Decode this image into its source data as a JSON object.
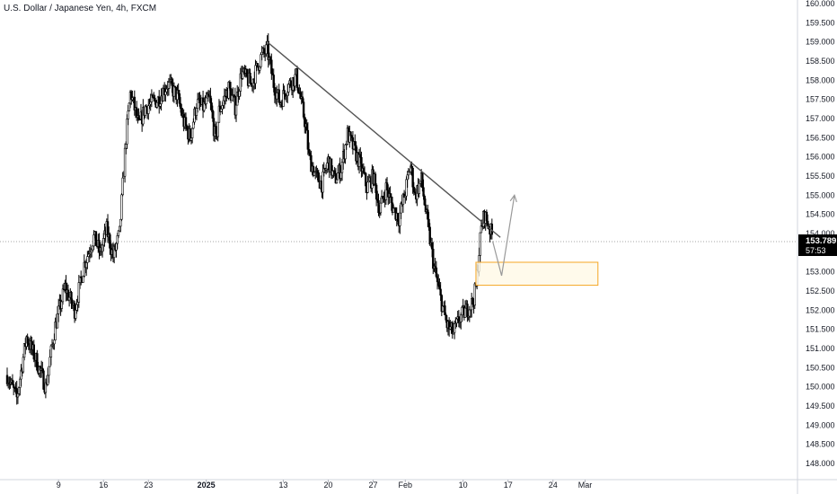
{
  "chart_data": {
    "type": "candlestick",
    "title": "U.S. Dollar / Japanese Yen, 4h, FXCM",
    "ylim": [
      147.75,
      160.1
    ],
    "y_ticks": [
      "148.000",
      "148.500",
      "149.000",
      "149.500",
      "150.000",
      "150.500",
      "151.000",
      "151.500",
      "152.000",
      "152.500",
      "153.000",
      "153.500",
      "154.000",
      "154.500",
      "155.000",
      "155.500",
      "156.000",
      "156.500",
      "157.000",
      "157.500",
      "158.000",
      "158.500",
      "159.000",
      "159.500",
      "160.000"
    ],
    "x_ticks": [
      {
        "label": "9",
        "day": 9
      },
      {
        "label": "16",
        "day": 16
      },
      {
        "label": "23",
        "day": 23
      },
      {
        "label": "2025",
        "day": 32
      },
      {
        "label": "13",
        "day": 44
      },
      {
        "label": "20",
        "day": 51
      },
      {
        "label": "27",
        "day": 58
      },
      {
        "label": "Feb",
        "day": 63
      },
      {
        "label": "10",
        "day": 72
      },
      {
        "label": "17",
        "day": 79
      },
      {
        "label": "24",
        "day": 86
      },
      {
        "label": "Mar",
        "day": 91
      }
    ],
    "x_axis_note": "day = days since Dec 1, 2024",
    "price_path": [
      [
        0,
        150.3
      ],
      [
        1.5,
        149.7
      ],
      [
        3,
        151.3
      ],
      [
        4.5,
        150.7
      ],
      [
        6,
        150.0
      ],
      [
        7.5,
        151.6
      ],
      [
        9,
        152.6
      ],
      [
        10.5,
        152.0
      ],
      [
        12,
        153.2
      ],
      [
        13.5,
        153.9
      ],
      [
        14.5,
        153.5
      ],
      [
        15.5,
        154.1
      ],
      [
        16.5,
        153.4
      ],
      [
        17.5,
        154.0
      ],
      [
        18.5,
        156.5
      ],
      [
        19.2,
        157.7
      ],
      [
        20.5,
        156.8
      ],
      [
        21.5,
        157.3
      ],
      [
        23.5,
        157.5
      ],
      [
        25,
        157.9
      ],
      [
        26.5,
        157.6
      ],
      [
        27.5,
        156.9
      ],
      [
        28.5,
        156.5
      ],
      [
        29.5,
        157.4
      ],
      [
        30.5,
        157.3
      ],
      [
        31.5,
        157.5
      ],
      [
        32.5,
        156.4
      ],
      [
        33,
        157.2
      ],
      [
        34.5,
        157.8
      ],
      [
        35.5,
        157.3
      ],
      [
        36.5,
        158.2
      ],
      [
        38,
        157.9
      ],
      [
        39.5,
        158.6
      ],
      [
        40.5,
        158.8
      ],
      [
        41.5,
        157.9
      ],
      [
        42.5,
        157.4
      ],
      [
        43.5,
        157.8
      ],
      [
        45,
        158.1
      ],
      [
        46.5,
        156.8
      ],
      [
        47,
        156.0
      ],
      [
        48,
        155.5
      ],
      [
        49,
        155.3
      ],
      [
        50,
        155.9
      ],
      [
        51,
        155.4
      ],
      [
        52,
        155.7
      ],
      [
        53,
        156.6
      ],
      [
        54,
        156.2
      ],
      [
        55,
        155.8
      ],
      [
        56,
        155.2
      ],
      [
        57,
        155.5
      ],
      [
        58,
        154.6
      ],
      [
        59,
        155.2
      ],
      [
        60,
        154.7
      ],
      [
        61,
        154.4
      ],
      [
        62,
        155.1
      ],
      [
        62.8,
        155.8
      ],
      [
        63.5,
        155.0
      ],
      [
        64.5,
        155.4
      ],
      [
        65.5,
        154.2
      ],
      [
        66.5,
        153.1
      ],
      [
        67.5,
        152.3
      ],
      [
        68.5,
        151.6
      ],
      [
        69.5,
        151.4
      ],
      [
        70.5,
        151.8
      ],
      [
        71.5,
        152.0
      ],
      [
        72.5,
        152.2
      ],
      [
        73,
        152.6
      ],
      [
        73.8,
        154.1
      ],
      [
        74.3,
        154.5
      ],
      [
        75,
        154.2
      ],
      [
        75.6,
        153.9
      ]
    ],
    "last_price": "153.789",
    "countdown": "57:53",
    "trendline": {
      "start": [
        40.5,
        159.0
      ],
      "end": [
        76.8,
        153.9
      ]
    },
    "zone": {
      "x_start": 73,
      "x_end": 92,
      "y_low": 152.65,
      "y_high": 153.25
    },
    "projection": [
      [
        75.6,
        153.8
      ],
      [
        77,
        152.9
      ],
      [
        79,
        155.0
      ]
    ],
    "colors": {
      "candles": "#000000",
      "trendline": "#555555",
      "zone_border": "#f5a623",
      "zone_fill": "#fff9e6",
      "projection": "#999999",
      "price_label_bg": "#000000",
      "crosshair": "#888888"
    }
  }
}
